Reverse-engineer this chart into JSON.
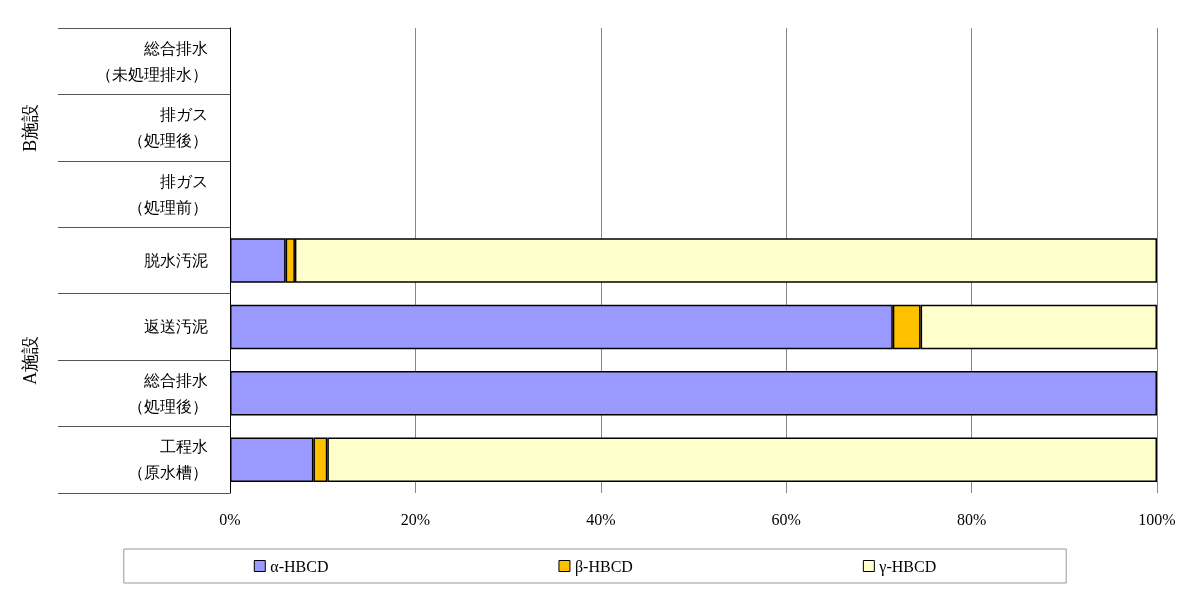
{
  "chart_data": {
    "type": "bar",
    "orientation": "horizontal",
    "stacked": true,
    "categories": [
      "総合排水（未処理排水）",
      "排ガス（処理後）",
      "排ガス（処理前）",
      "脱水汚泥",
      "返送汚泥",
      "総合排水（処理後）",
      "工程水（原水槽）"
    ],
    "series": [
      {
        "name": "α-HBCD",
        "color": "#9999ff",
        "values": [
          null,
          null,
          null,
          6,
          71.5,
          100,
          9
        ]
      },
      {
        "name": "β-HBCD",
        "color": "#ffc000",
        "values": [
          null,
          null,
          null,
          1,
          3,
          null,
          1.5
        ]
      },
      {
        "name": "γ-HBCD",
        "color": "#ffffcc",
        "values": [
          null,
          null,
          null,
          93,
          25.5,
          null,
          89.5
        ]
      }
    ],
    "xlim": [
      0,
      100
    ],
    "xticks": [
      {
        "value": 0,
        "label": "0%"
      },
      {
        "value": 20,
        "label": "20%"
      },
      {
        "value": 40,
        "label": "40%"
      },
      {
        "value": 60,
        "label": "60%"
      },
      {
        "value": 80,
        "label": "80%"
      },
      {
        "value": 100,
        "label": "100%"
      }
    ],
    "annotations": [
      "B施設",
      "A施設"
    ],
    "grid": "x",
    "legend": "bottom"
  }
}
